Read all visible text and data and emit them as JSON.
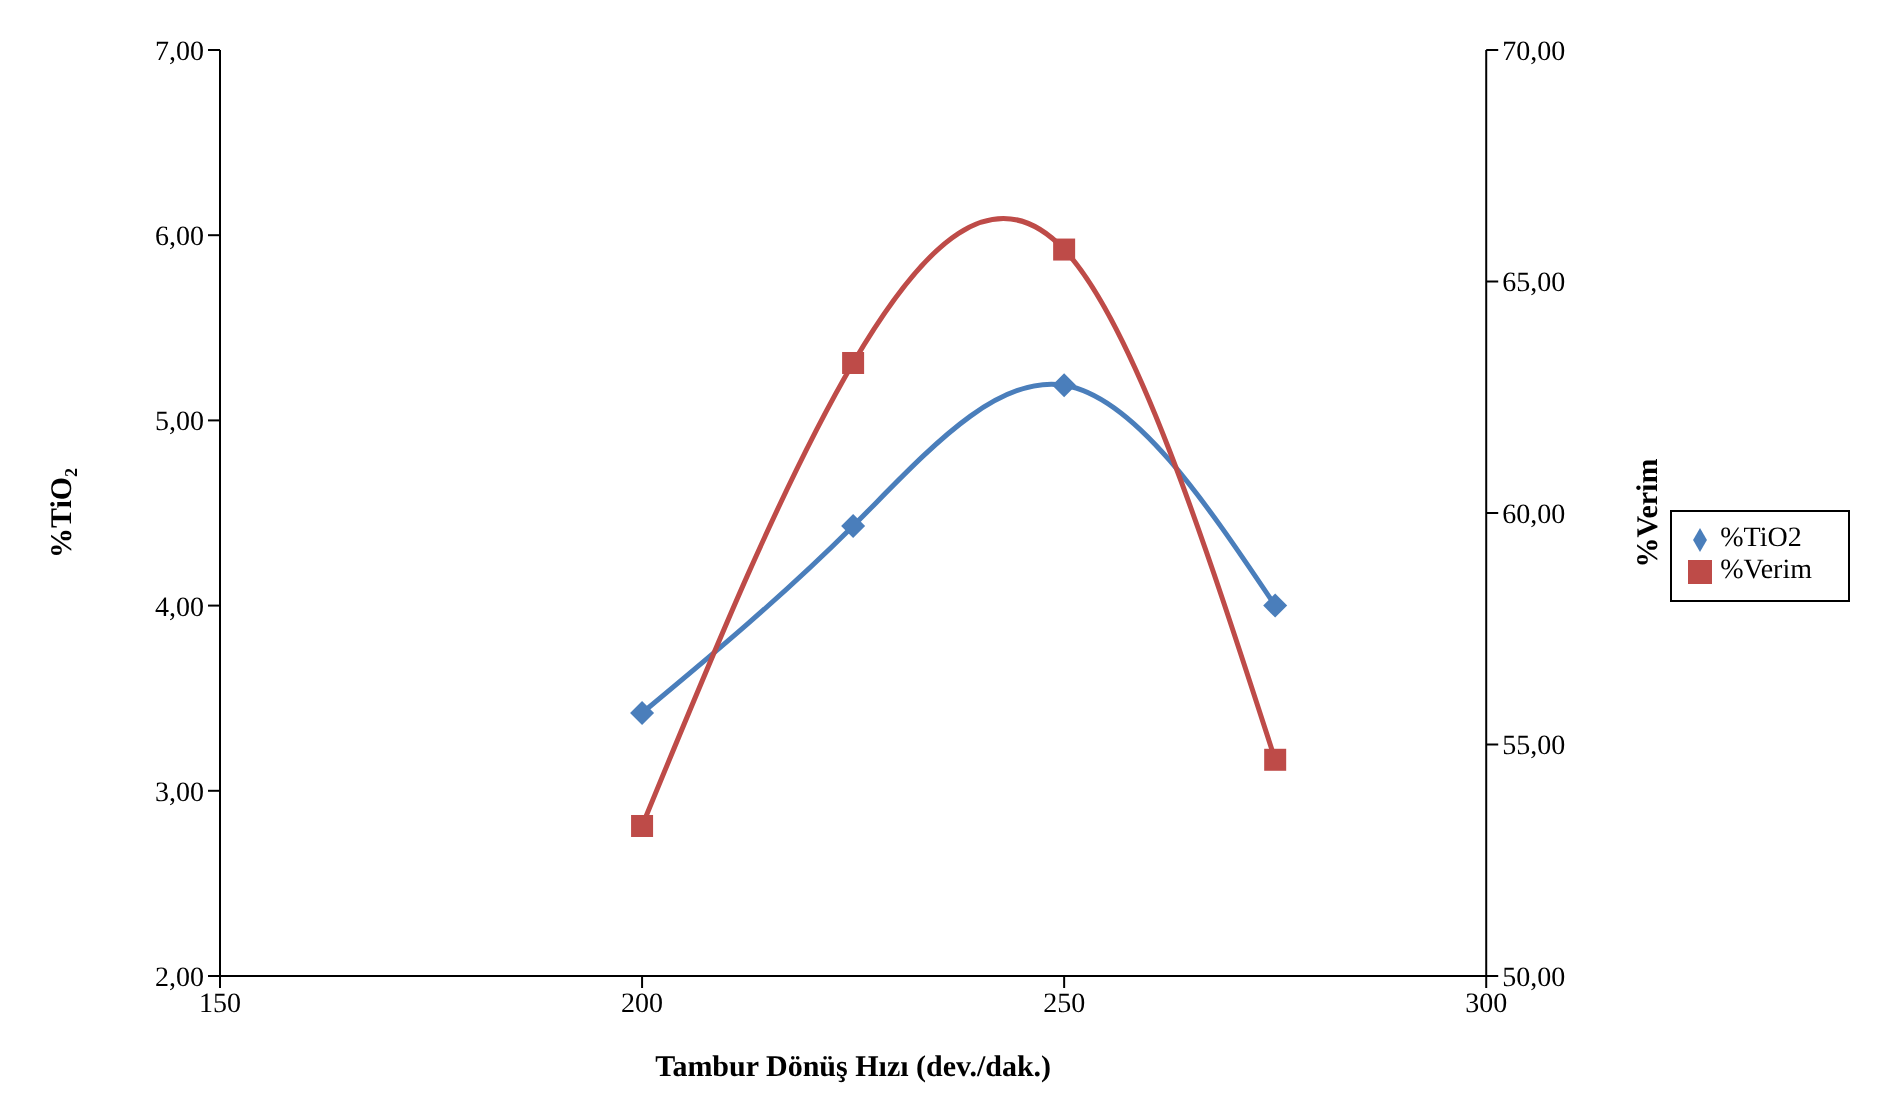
{
  "chart_data": {
    "type": "line",
    "xlabel": "Tambur Dönüş Hızı (dev./dak.)",
    "ylabel": "%TiO₂",
    "y2label": "%Verim",
    "x": [
      200,
      225,
      250,
      275
    ],
    "series": [
      {
        "name": "%TiO2",
        "color": "#4a7ebb",
        "marker": "diamond",
        "values": [
          3.42,
          4.43,
          5.19,
          4.0
        ]
      },
      {
        "name": "%Verim",
        "color": "#be4b48",
        "marker": "square",
        "axis": "y2",
        "values": [
          53.24,
          63.24,
          65.69,
          54.67
        ]
      }
    ],
    "xlim": [
      150,
      300
    ],
    "xticks": [
      150,
      200,
      250,
      300
    ],
    "ylim": [
      2,
      7
    ],
    "yticks": [
      {
        "value": 2,
        "label": "2,00"
      },
      {
        "value": 3,
        "label": "3,00"
      },
      {
        "value": 4,
        "label": "4,00"
      },
      {
        "value": 5,
        "label": "5,00"
      },
      {
        "value": 6,
        "label": "6,00"
      },
      {
        "value": 7,
        "label": "7,00"
      }
    ],
    "y2lim": [
      50,
      70
    ],
    "y2ticks": [
      {
        "value": 50,
        "label": "50,00"
      },
      {
        "value": 55,
        "label": "55,00"
      },
      {
        "value": 60,
        "label": "60,00"
      },
      {
        "value": 65,
        "label": "65,00"
      },
      {
        "value": 70,
        "label": "70,00"
      }
    ],
    "grid": false,
    "legend": "right",
    "line_style": "solid"
  }
}
